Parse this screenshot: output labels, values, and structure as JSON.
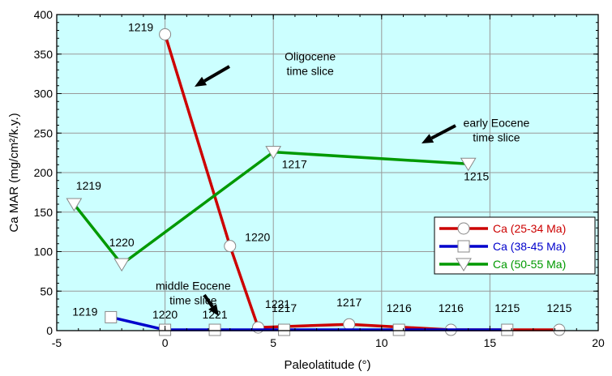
{
  "chart_data": {
    "type": "line",
    "xlabel": "Paleolatitude (°)",
    "ylabel": "Ca MAR (mg/cm²/k.y.)",
    "xlim": [
      -5,
      20
    ],
    "ylim": [
      0,
      400
    ],
    "xticks": [
      "-5",
      "0",
      "5",
      "10",
      "15",
      "20"
    ],
    "yticks": [
      "0",
      "50",
      "100",
      "150",
      "200",
      "250",
      "300",
      "350",
      "400"
    ],
    "grid": true,
    "background": "#ccffff",
    "legend_position": "right",
    "series": [
      {
        "name": "Ca (25-34 Ma)",
        "color": "#cc0000",
        "marker": "circle",
        "points": [
          {
            "x": 0,
            "y": 375,
            "label": "1219"
          },
          {
            "x": 3,
            "y": 107,
            "label": "1220"
          },
          {
            "x": 4.3,
            "y": 4,
            "label": "1221"
          },
          {
            "x": 8.5,
            "y": 8,
            "label": "1217"
          },
          {
            "x": 13.2,
            "y": 1,
            "label": "1216"
          },
          {
            "x": 18.2,
            "y": 1,
            "label": "1215"
          }
        ]
      },
      {
        "name": "Ca (38-45 Ma)",
        "color": "#0000cc",
        "marker": "square",
        "points": [
          {
            "x": -2.5,
            "y": 17,
            "label": "1219"
          },
          {
            "x": 0,
            "y": 1,
            "label": "1220"
          },
          {
            "x": 2.3,
            "y": 1,
            "label": "1221"
          },
          {
            "x": 5.5,
            "y": 1,
            "label": "1217"
          },
          {
            "x": 10.8,
            "y": 1,
            "label": "1216"
          },
          {
            "x": 15.8,
            "y": 1,
            "label": "1215"
          }
        ]
      },
      {
        "name": "Ca (50-55 Ma)",
        "color": "#009900",
        "marker": "triangle-down",
        "points": [
          {
            "x": -4.2,
            "y": 160,
            "label": "1219"
          },
          {
            "x": -2,
            "y": 84,
            "label": "1220"
          },
          {
            "x": 5,
            "y": 226,
            "label": "1217"
          },
          {
            "x": 14,
            "y": 211,
            "label": "1215"
          }
        ]
      }
    ],
    "annotations": [
      {
        "lines": [
          "Oligocene",
          "time slice"
        ],
        "x": 6.7,
        "y": 342
      },
      {
        "lines": [
          "early Eocene",
          "time slice"
        ],
        "x": 15.3,
        "y": 258
      },
      {
        "lines": [
          "middle Eocene",
          "time slice"
        ],
        "x": 1.3,
        "y": 52
      }
    ]
  }
}
